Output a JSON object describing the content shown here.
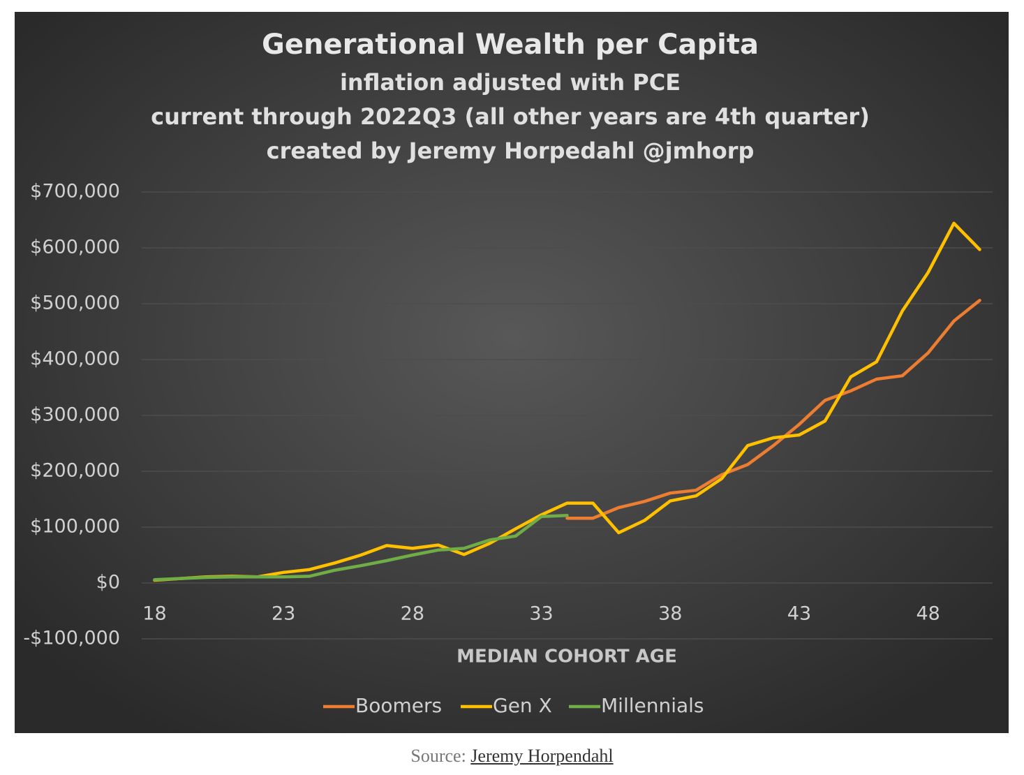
{
  "chart_data": {
    "type": "line",
    "title": "Generational Wealth per Capita",
    "subtitles": [
      "inflation adjusted with PCE",
      "current through 2022Q3 (all other years are 4th quarter)",
      "created by Jeremy Horpedahl @jmhorp"
    ],
    "x_label": "MEDIAN COHORT AGE",
    "x": [
      18,
      19,
      20,
      21,
      22,
      23,
      24,
      25,
      26,
      27,
      28,
      29,
      30,
      31,
      32,
      33,
      34,
      35,
      36,
      37,
      38,
      39,
      40,
      41,
      42,
      43,
      44,
      45,
      46,
      47,
      48,
      49,
      50
    ],
    "series": [
      {
        "name": "Boomers",
        "color": "#ed7d31",
        "values": [
          null,
          null,
          null,
          null,
          null,
          null,
          null,
          null,
          null,
          null,
          null,
          null,
          null,
          null,
          null,
          null,
          116000,
          116000,
          135000,
          146000,
          161000,
          166000,
          194000,
          212000,
          246000,
          284000,
          327000,
          344000,
          365000,
          371000,
          412000,
          469000,
          506000
        ]
      },
      {
        "name": "Gen X",
        "color": "#ffc000",
        "values": [
          5000,
          8000,
          11000,
          12000,
          11000,
          19000,
          24000,
          36000,
          50000,
          67000,
          62000,
          68000,
          51000,
          71000,
          97000,
          122000,
          143000,
          143000,
          90000,
          112000,
          147000,
          156000,
          187000,
          246000,
          260000,
          265000,
          290000,
          369000,
          396000,
          487000,
          556000,
          644000,
          597000
        ]
      },
      {
        "name": "Millennials",
        "color": "#70ad47",
        "values": [
          6000,
          8000,
          10000,
          11000,
          11000,
          11000,
          12000,
          23000,
          31000,
          40000,
          50000,
          59000,
          62000,
          77000,
          84000,
          119000,
          121000,
          null,
          null,
          null,
          null,
          null,
          null,
          null,
          null,
          null,
          null,
          null,
          null,
          null,
          null,
          null,
          null
        ]
      }
    ],
    "xlim": [
      17.5,
      50.5
    ],
    "xticks": [
      18,
      23,
      28,
      33,
      38,
      43,
      48
    ],
    "ylim": [
      -100000,
      700000
    ],
    "yticks": [
      {
        "value": -100000,
        "label": "-$100,000"
      },
      {
        "value": 0,
        "label": "$0"
      },
      {
        "value": 100000,
        "label": "$100,000"
      },
      {
        "value": 200000,
        "label": "$200,000"
      },
      {
        "value": 300000,
        "label": "$300,000"
      },
      {
        "value": 400000,
        "label": "$400,000"
      },
      {
        "value": 500000,
        "label": "$500,000"
      },
      {
        "value": 600000,
        "label": "$600,000"
      },
      {
        "value": 700000,
        "label": "$700,000"
      }
    ],
    "grid": true,
    "legend": "bottom"
  },
  "caption": {
    "prefix": "Source:",
    "link": "Jeremy Horpendahl"
  }
}
